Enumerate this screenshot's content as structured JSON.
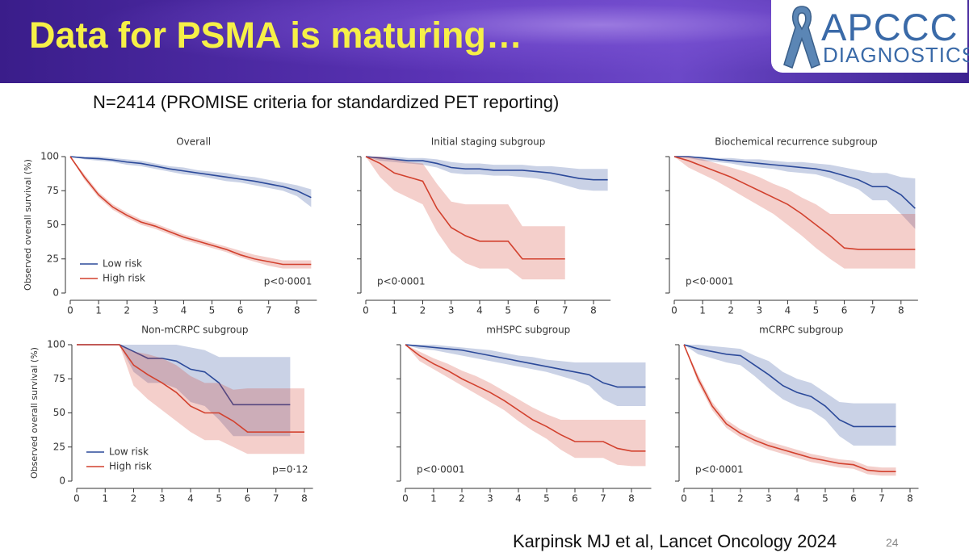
{
  "slide": {
    "title": "Data for PSMA is maturing…",
    "logo_top": "APCCC",
    "logo_bottom": "DIAGNOSTICS",
    "subtitle": "N=2414 (PROMISE criteria for standardized PET reporting)",
    "citation": "Karpinsk MJ et al, Lancet Oncology 2024",
    "page_number": "24"
  },
  "chart_data": [
    {
      "type": "line",
      "title": "Overall",
      "ylabel": "Observed overall survival (%)",
      "annotation": "p<0·0001",
      "annotation_corner": "lower right",
      "legend": "lower left",
      "ytick_labels": true,
      "x": [
        0,
        0.5,
        1,
        1.5,
        2,
        2.5,
        3,
        3.5,
        4,
        4.5,
        5,
        5.5,
        6,
        6.5,
        7,
        7.5,
        8,
        8.5
      ],
      "series": [
        {
          "name": "Low risk",
          "color": "#2c4a9a",
          "values": [
            100,
            99,
            98.5,
            97.5,
            96,
            95,
            93,
            91,
            89.5,
            88,
            86.5,
            85,
            83.5,
            82,
            80,
            78,
            75,
            70
          ],
          "ci_low": [
            100,
            98,
            97,
            96,
            94,
            93,
            91,
            89,
            87,
            86,
            84,
            82,
            81,
            79,
            77,
            75,
            71,
            63
          ],
          "ci_high": [
            100,
            100,
            100,
            99,
            98,
            97,
            95,
            93,
            92,
            90,
            89,
            88,
            86,
            85,
            83,
            81,
            79,
            76
          ]
        },
        {
          "name": "High risk",
          "color": "#d2412e",
          "values": [
            100,
            85,
            72,
            63,
            57,
            52,
            49,
            45,
            41,
            38,
            35,
            32,
            28,
            25,
            23,
            21,
            21,
            21
          ],
          "ci_low": [
            100,
            83,
            70,
            61,
            55,
            50,
            47,
            43,
            39,
            36,
            33,
            30,
            26,
            23,
            20,
            18,
            18,
            18
          ],
          "ci_high": [
            100,
            87,
            74,
            65,
            59,
            54,
            51,
            47,
            43,
            40,
            37,
            34,
            31,
            28,
            26,
            24,
            24,
            24
          ]
        }
      ],
      "xlim": [
        0,
        8.7
      ],
      "ylim": [
        0,
        100
      ],
      "xticks": [
        0,
        1,
        2,
        3,
        4,
        5,
        6,
        7,
        8
      ],
      "yticks": [
        0,
        25,
        50,
        75,
        100
      ]
    },
    {
      "type": "line",
      "title": "Initial staging subgroup",
      "annotation": "p<0·0001",
      "annotation_corner": "lower left",
      "ytick_labels": false,
      "x": [
        0,
        0.5,
        1,
        1.5,
        2,
        2.5,
        3,
        3.5,
        4,
        4.5,
        5,
        5.5,
        6,
        6.5,
        7,
        7.5,
        8,
        8.5
      ],
      "series": [
        {
          "color": "#2c4a9a",
          "values": [
            100,
            99,
            98,
            97,
            97,
            95,
            92,
            91,
            91,
            90,
            90,
            90,
            89,
            88,
            86,
            84,
            83,
            83
          ],
          "ci_low": [
            100,
            97,
            96,
            95,
            94,
            92,
            88,
            87,
            87,
            86,
            86,
            85,
            84,
            82,
            79,
            76,
            75,
            75
          ],
          "ci_high": [
            100,
            100,
            100,
            99,
            99,
            98,
            96,
            95,
            95,
            94,
            94,
            94,
            93,
            93,
            92,
            91,
            91,
            91
          ]
        },
        {
          "color": "#d2412e",
          "values": [
            100,
            95,
            88,
            85,
            82,
            62,
            48,
            42,
            38,
            38,
            38,
            25,
            25,
            25,
            25,
            null,
            null,
            null
          ],
          "ci_low": [
            100,
            85,
            75,
            70,
            65,
            45,
            30,
            22,
            18,
            18,
            18,
            10,
            10,
            10,
            10,
            null,
            null,
            null
          ],
          "ci_high": [
            100,
            100,
            98,
            96,
            95,
            80,
            67,
            65,
            65,
            65,
            65,
            49,
            49,
            49,
            49,
            null,
            null,
            null
          ]
        }
      ],
      "xlim": [
        0,
        8.6
      ],
      "ylim": [
        0,
        100
      ],
      "xticks": [
        0,
        1,
        2,
        3,
        4,
        5,
        6,
        7,
        8
      ],
      "yticks": [
        0,
        25,
        50,
        75,
        100
      ]
    },
    {
      "type": "line",
      "title": "Biochemical recurrence subgroup",
      "annotation": "p<0·0001",
      "annotation_corner": "lower left",
      "ytick_labels": false,
      "x": [
        0,
        0.5,
        1,
        1.5,
        2,
        2.5,
        3,
        3.5,
        4,
        4.5,
        5,
        5.5,
        6,
        6.5,
        7,
        7.5,
        8,
        8.5
      ],
      "series": [
        {
          "color": "#2c4a9a",
          "values": [
            100,
            100,
            99,
            98,
            97,
            96,
            95,
            94,
            93,
            92,
            91,
            89,
            86,
            83,
            78,
            78,
            72,
            62
          ],
          "ci_low": [
            100,
            99,
            97,
            96,
            95,
            93,
            92,
            91,
            89,
            88,
            87,
            84,
            80,
            76,
            68,
            68,
            58,
            47
          ],
          "ci_high": [
            100,
            100,
            100,
            99,
            99,
            98,
            98,
            97,
            96,
            96,
            95,
            94,
            92,
            90,
            88,
            88,
            85,
            84
          ]
        },
        {
          "color": "#d2412e",
          "values": [
            100,
            97,
            93,
            89,
            85,
            80,
            75,
            70,
            65,
            58,
            50,
            42,
            33,
            32,
            32,
            32,
            32,
            32
          ],
          "ci_low": [
            100,
            92,
            87,
            82,
            76,
            70,
            64,
            58,
            50,
            42,
            33,
            25,
            18,
            18,
            18,
            18,
            18,
            18
          ],
          "ci_high": [
            100,
            100,
            98,
            95,
            92,
            89,
            85,
            80,
            76,
            70,
            65,
            58,
            58,
            58,
            58,
            58,
            58,
            58
          ]
        }
      ],
      "xlim": [
        0,
        8.6
      ],
      "ylim": [
        0,
        100
      ],
      "xticks": [
        0,
        1,
        2,
        3,
        4,
        5,
        6,
        7,
        8
      ],
      "yticks": [
        0,
        25,
        50,
        75,
        100
      ]
    },
    {
      "type": "line",
      "title": "Non-mCRPC subgroup",
      "ylabel": "Observed overall survival (%)",
      "annotation": "p=0·12",
      "annotation_corner": "lower right",
      "legend": "lower left",
      "ytick_labels": true,
      "x": [
        0,
        0.5,
        1,
        1.5,
        2,
        2.5,
        3,
        3.5,
        4,
        4.5,
        5,
        5.5,
        6,
        6.5,
        7,
        7.5,
        8
      ],
      "series": [
        {
          "name": "Low risk",
          "color": "#2c4a9a",
          "values": [
            100,
            100,
            100,
            100,
            95,
            90,
            90,
            88,
            82,
            80,
            72,
            56,
            56,
            56,
            56,
            56,
            null
          ],
          "ci_low": [
            100,
            100,
            100,
            100,
            80,
            72,
            72,
            68,
            58,
            55,
            45,
            33,
            33,
            33,
            33,
            33,
            null
          ],
          "ci_high": [
            100,
            100,
            100,
            100,
            100,
            100,
            100,
            100,
            98,
            96,
            91,
            91,
            91,
            91,
            91,
            91,
            null
          ]
        },
        {
          "name": "High risk",
          "color": "#d2412e",
          "values": [
            100,
            100,
            100,
            100,
            85,
            78,
            72,
            65,
            55,
            50,
            50,
            44,
            36,
            36,
            36,
            36,
            36
          ],
          "ci_low": [
            100,
            100,
            100,
            100,
            70,
            60,
            52,
            44,
            36,
            30,
            30,
            25,
            20,
            20,
            20,
            20,
            20
          ],
          "ci_high": [
            100,
            100,
            100,
            100,
            95,
            93,
            90,
            85,
            77,
            72,
            72,
            67,
            68,
            68,
            68,
            68,
            68
          ]
        }
      ],
      "xlim": [
        0,
        8.3
      ],
      "ylim": [
        0,
        100
      ],
      "xticks": [
        0,
        1,
        2,
        3,
        4,
        5,
        6,
        7,
        8
      ],
      "yticks": [
        0,
        25,
        50,
        75,
        100
      ]
    },
    {
      "type": "line",
      "title": "mHSPC subgroup",
      "annotation": "p<0·0001",
      "annotation_corner": "lower left",
      "ytick_labels": false,
      "x": [
        0,
        0.5,
        1,
        1.5,
        2,
        2.5,
        3,
        3.5,
        4,
        4.5,
        5,
        5.5,
        6,
        6.5,
        7,
        7.5,
        8,
        8.5
      ],
      "series": [
        {
          "color": "#2c4a9a",
          "values": [
            100,
            99,
            98,
            97,
            96,
            94,
            92,
            90,
            88,
            86,
            84,
            82,
            80,
            78,
            72,
            69,
            69,
            69
          ],
          "ci_low": [
            100,
            97,
            96,
            94,
            92,
            90,
            88,
            86,
            84,
            82,
            80,
            77,
            74,
            70,
            60,
            55,
            55,
            55
          ],
          "ci_high": [
            100,
            100,
            100,
            99,
            98,
            97,
            96,
            94,
            92,
            91,
            89,
            88,
            87,
            87,
            87,
            87,
            87,
            87
          ]
        },
        {
          "color": "#d2412e",
          "values": [
            100,
            92,
            86,
            81,
            75,
            70,
            65,
            59,
            52,
            45,
            40,
            34,
            29,
            29,
            29,
            24,
            22,
            22
          ],
          "ci_low": [
            100,
            88,
            82,
            76,
            70,
            64,
            58,
            52,
            44,
            37,
            31,
            23,
            17,
            17,
            17,
            12,
            11,
            11
          ],
          "ci_high": [
            100,
            95,
            90,
            86,
            81,
            77,
            72,
            66,
            60,
            54,
            49,
            45,
            45,
            45,
            45,
            45,
            45,
            45
          ]
        }
      ],
      "xlim": [
        0,
        8.7
      ],
      "ylim": [
        0,
        100
      ],
      "xticks": [
        0,
        1,
        2,
        3,
        4,
        5,
        6,
        7,
        8
      ],
      "yticks": [
        0,
        25,
        50,
        75,
        100
      ]
    },
    {
      "type": "line",
      "title": "mCRPC subgroup",
      "annotation": "p<0·0001",
      "annotation_corner": "lower left",
      "ytick_labels": false,
      "x": [
        0,
        0.5,
        1,
        1.5,
        2,
        2.5,
        3,
        3.5,
        4,
        4.5,
        5,
        5.5,
        6,
        6.5,
        7,
        7.5
      ],
      "series": [
        {
          "color": "#2c4a9a",
          "values": [
            100,
            97,
            95,
            93,
            92,
            85,
            78,
            70,
            65,
            62,
            55,
            45,
            40,
            40,
            40,
            40
          ],
          "ci_low": [
            100,
            93,
            90,
            87,
            85,
            77,
            68,
            60,
            55,
            52,
            45,
            33,
            26,
            26,
            26,
            26
          ],
          "ci_high": [
            100,
            100,
            99,
            98,
            97,
            92,
            88,
            80,
            75,
            72,
            65,
            58,
            57,
            57,
            57,
            57
          ]
        },
        {
          "color": "#d2412e",
          "values": [
            100,
            75,
            55,
            42,
            35,
            30,
            26,
            23,
            20,
            17,
            15,
            13,
            12,
            8,
            7,
            7
          ],
          "ci_low": [
            100,
            72,
            52,
            39,
            32,
            27,
            23,
            20,
            17,
            14,
            12,
            10,
            9,
            5,
            4,
            4
          ],
          "ci_high": [
            100,
            78,
            58,
            45,
            38,
            33,
            29,
            26,
            23,
            20,
            18,
            16,
            15,
            11,
            10,
            10
          ]
        }
      ],
      "xlim": [
        0,
        8.3
      ],
      "ylim": [
        0,
        100
      ],
      "xticks": [
        0,
        1,
        2,
        3,
        4,
        5,
        6,
        7,
        8
      ],
      "yticks": [
        0,
        25,
        50,
        75,
        100
      ]
    }
  ]
}
